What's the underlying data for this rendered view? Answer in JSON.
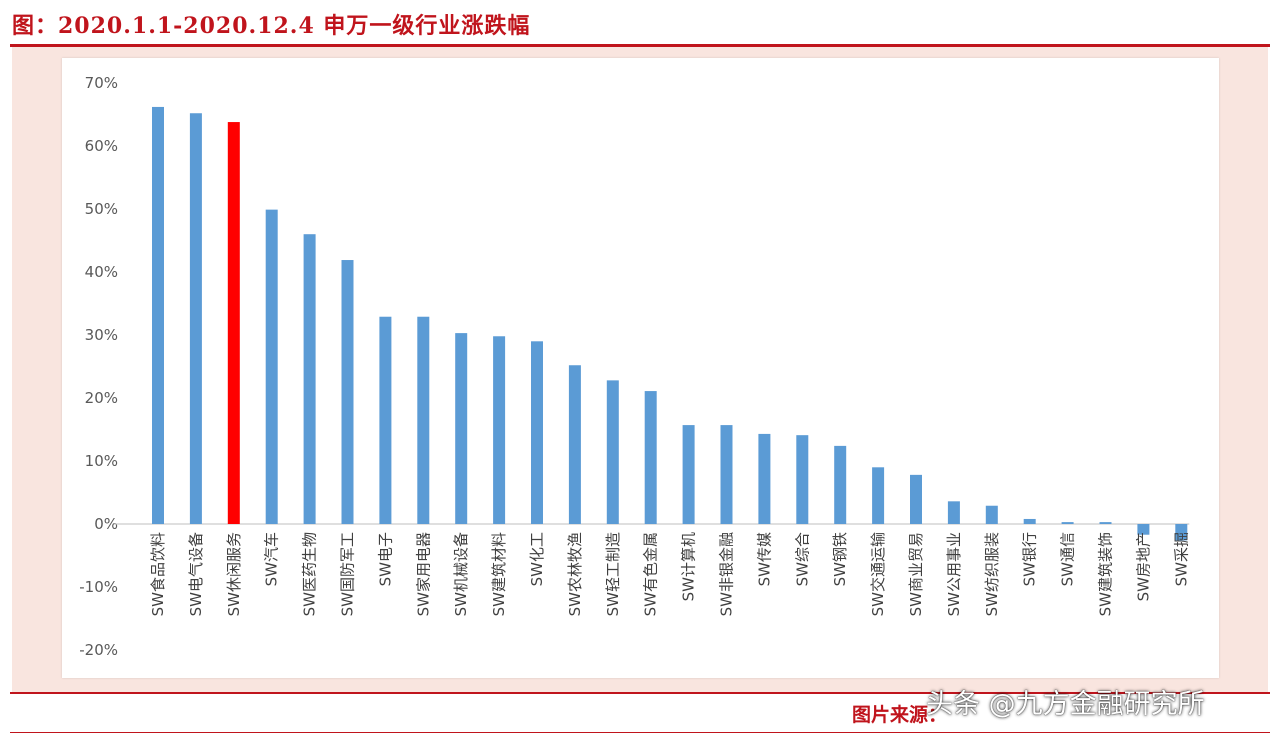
{
  "header": {
    "title": "图：2020.1.1-2020.12.4 申万一级行业涨跌幅"
  },
  "footer": {
    "source": "图片来源：",
    "watermark": "头条 @九方金融研究所"
  },
  "colors": {
    "accent": "#c0141c",
    "bar": "#5b9bd5",
    "highlight_bar": "#ff0000",
    "frame_bg": "#f9e5df"
  },
  "chart_data": {
    "type": "bar",
    "title": "",
    "xlabel": "",
    "ylabel": "",
    "ylim": [
      -20,
      70
    ],
    "yticks": [
      70,
      60,
      50,
      40,
      30,
      20,
      10,
      0,
      -10,
      -20
    ],
    "ytick_labels": [
      "70%",
      "60%",
      "50%",
      "40%",
      "30%",
      "20%",
      "10%",
      "0%",
      "-10%",
      "-20%"
    ],
    "grid": false,
    "legend": "none",
    "highlight_category": "SW休闲服务",
    "categories": [
      "SW食品饮料",
      "SW电气设备",
      "SW休闲服务",
      "SW汽车",
      "SW医药生物",
      "SW国防军工",
      "SW电子",
      "SW家用电器",
      "SW机械设备",
      "SW建筑材料",
      "SW化工",
      "SW农林牧渔",
      "SW轻工制造",
      "SW有色金属",
      "SW计算机",
      "SW非银金融",
      "SW传媒",
      "SW综合",
      "SW钢铁",
      "SW交通运输",
      "SW商业贸易",
      "SW公用事业",
      "SW纺织服装",
      "SW银行",
      "SW通信",
      "SW建筑装饰",
      "SW房地产",
      "SW采掘"
    ],
    "values": [
      66.2,
      65.2,
      63.8,
      49.9,
      46.0,
      41.9,
      32.9,
      32.9,
      30.3,
      29.8,
      29.0,
      25.2,
      22.8,
      21.1,
      15.7,
      15.7,
      14.3,
      14.1,
      12.4,
      9.0,
      7.8,
      3.6,
      2.9,
      0.8,
      0.3,
      0.3,
      -1.7,
      -2.6
    ]
  }
}
